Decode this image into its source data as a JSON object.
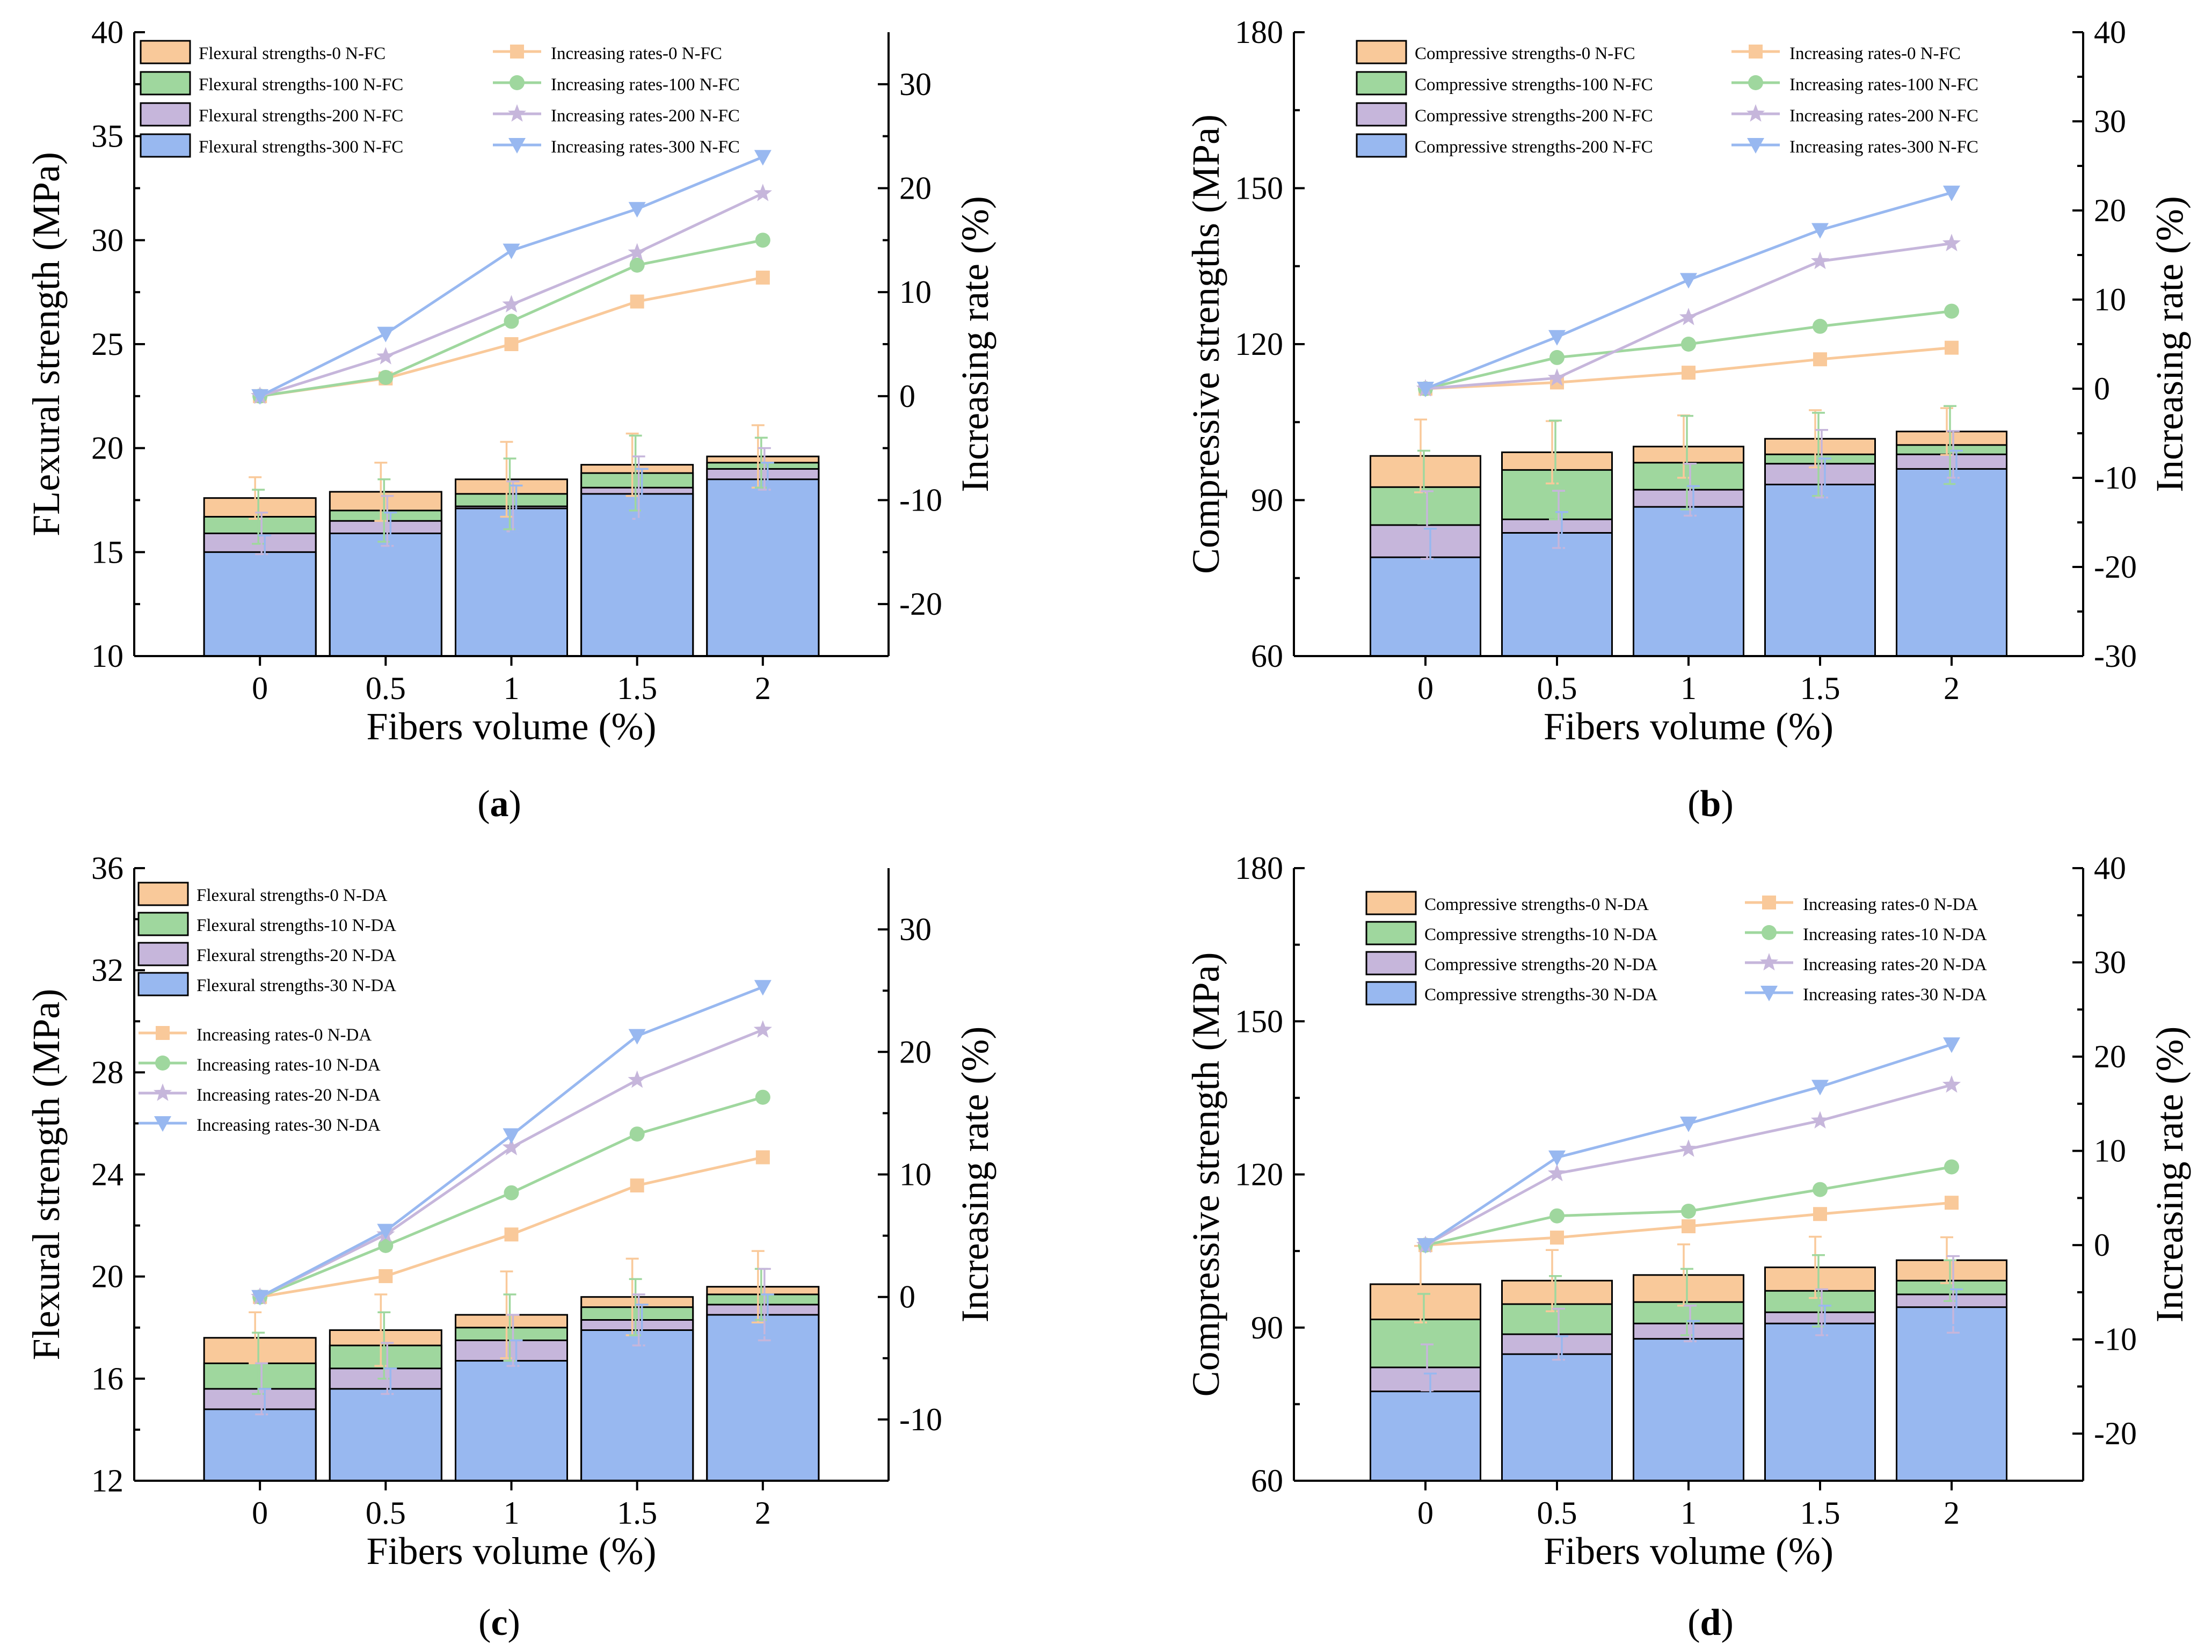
{
  "chart_data": [
    {
      "id": "a",
      "type": "bar",
      "stacked": true,
      "caption": "a",
      "categories": [
        "0",
        "0.5",
        "1",
        "1.5",
        "2"
      ],
      "xlabel": "Fibers volume (%)",
      "ylabel": "FLexural strength (MPa)",
      "ylabel2": "Increasing rate (%)",
      "ylim": [
        10,
        40
      ],
      "yticks": [
        10,
        15,
        20,
        25,
        30,
        35,
        40
      ],
      "ylim2": [
        -25,
        35
      ],
      "yticks2": [
        -20,
        -10,
        0,
        10,
        20,
        30
      ],
      "bar_series": [
        {
          "name": "Flexural strengths-0 N-FC",
          "color": "#F9C99A",
          "values": [
            17.6,
            17.9,
            18.5,
            19.2,
            19.6
          ],
          "errors": [
            1.0,
            1.4,
            1.8,
            1.5,
            1.5
          ]
        },
        {
          "name": "Flexural strengths-100 N-FC",
          "color": "#9FD79E",
          "values": [
            16.7,
            17.0,
            17.8,
            18.8,
            19.3
          ],
          "errors": [
            1.3,
            1.5,
            1.7,
            1.8,
            1.2
          ]
        },
        {
          "name": "Flexural strengths-200 N-FC",
          "color": "#C6B6DB",
          "values": [
            15.9,
            16.5,
            17.2,
            18.1,
            19.0
          ],
          "errors": [
            1.0,
            1.2,
            1.2,
            1.5,
            1.0
          ]
        },
        {
          "name": "Flexural strengths-300 N-FC",
          "color": "#98B8F0",
          "values": [
            15.0,
            15.9,
            17.1,
            17.8,
            18.5
          ],
          "errors": [
            0.8,
            1.0,
            1.1,
            1.2,
            0.8
          ]
        }
      ],
      "line_series": [
        {
          "name": "Increasing rates-0 N-FC",
          "color": "#F9C99A",
          "marker": "square",
          "values": [
            0,
            1.7,
            5.0,
            9.1,
            11.4
          ]
        },
        {
          "name": "Increasing rates-100 N-FC",
          "color": "#9FD79E",
          "marker": "circle",
          "values": [
            0,
            1.8,
            7.2,
            12.6,
            15.0
          ]
        },
        {
          "name": "Increasing rates-200 N-FC",
          "color": "#C6B6DB",
          "marker": "star",
          "values": [
            0,
            3.8,
            8.8,
            13.8,
            19.5
          ]
        },
        {
          "name": "Increasing rates-300 N-FC",
          "color": "#98B8F0",
          "marker": "tri",
          "values": [
            0,
            6.0,
            14.0,
            18.0,
            23.0
          ]
        }
      ]
    },
    {
      "id": "b",
      "type": "bar",
      "stacked": true,
      "caption": "b",
      "categories": [
        "0",
        "0.5",
        "1",
        "1.5",
        "2"
      ],
      "xlabel": "Fibers volume (%)",
      "ylabel": "Compressive strengths (MPa)",
      "ylabel2": "Increasing rate (%)",
      "ylim": [
        60,
        180
      ],
      "yticks": [
        60,
        90,
        120,
        150,
        180
      ],
      "ylim2": [
        -30,
        40
      ],
      "yticks2": [
        -30,
        -20,
        -10,
        0,
        10,
        20,
        30,
        40
      ],
      "bar_series": [
        {
          "name": "Compressive strengths-0 N-FC",
          "color": "#F9C99A",
          "values": [
            98.5,
            99.2,
            100.3,
            101.8,
            103.2
          ],
          "errors": [
            7.0,
            6.0,
            6.0,
            5.5,
            4.5
          ]
        },
        {
          "name": "Compressive strengths-100 N-FC",
          "color": "#9FD79E",
          "values": [
            92.5,
            95.8,
            97.2,
            98.8,
            100.6
          ],
          "errors": [
            7.0,
            9.5,
            9.0,
            8.0,
            7.5
          ]
        },
        {
          "name": "Compressive strengths-200 N-FC",
          "color": "#C6B6DB",
          "values": [
            85.2,
            86.3,
            92.0,
            97.0,
            98.8
          ],
          "errors": [
            6.5,
            5.5,
            5.0,
            6.5,
            4.5
          ]
        },
        {
          "name": "Compressive strengths-200 N-FC",
          "color": "#98B8F0",
          "values": [
            79.0,
            83.7,
            88.7,
            93.0,
            96.0
          ],
          "errors": [
            5.5,
            4.0,
            4.0,
            5.0,
            3.5
          ]
        }
      ],
      "line_series": [
        {
          "name": "Increasing rates-0 N-FC",
          "color": "#F9C99A",
          "marker": "square",
          "values": [
            0,
            0.7,
            1.8,
            3.3,
            4.6
          ]
        },
        {
          "name": "Increasing rates-100 N-FC",
          "color": "#9FD79E",
          "marker": "circle",
          "values": [
            0,
            3.5,
            5.0,
            7.0,
            8.7
          ]
        },
        {
          "name": "Increasing rates-200 N-FC",
          "color": "#C6B6DB",
          "marker": "star",
          "values": [
            0,
            1.2,
            8.0,
            14.3,
            16.3
          ]
        },
        {
          "name": "Increasing rates-300 N-FC",
          "color": "#98B8F0",
          "marker": "tri",
          "values": [
            0,
            5.8,
            12.2,
            17.8,
            22.0
          ]
        }
      ]
    },
    {
      "id": "c",
      "type": "bar",
      "stacked": true,
      "caption": "c",
      "categories": [
        "0",
        "0.5",
        "1",
        "1.5",
        "2"
      ],
      "xlabel": "Fibers volume (%)",
      "ylabel": "Flexural strength (MPa)",
      "ylabel2": "Increasing rate (%)",
      "ylim": [
        12,
        36
      ],
      "yticks": [
        12,
        16,
        20,
        24,
        28,
        32,
        36
      ],
      "ylim2": [
        -15,
        35
      ],
      "yticks2": [
        -10,
        0,
        10,
        20,
        30
      ],
      "bar_series": [
        {
          "name": "Flexural strengths-0 N-DA",
          "color": "#F9C99A",
          "values": [
            17.6,
            17.9,
            18.5,
            19.2,
            19.6
          ],
          "errors": [
            1.0,
            1.4,
            1.7,
            1.5,
            1.4
          ]
        },
        {
          "name": "Flexural strengths-10 N-DA",
          "color": "#9FD79E",
          "values": [
            16.6,
            17.3,
            18.0,
            18.8,
            19.3
          ],
          "errors": [
            1.2,
            1.3,
            1.3,
            1.1,
            1.0
          ]
        },
        {
          "name": "Flexural strengths-20 N-DA",
          "color": "#C6B6DB",
          "values": [
            15.6,
            16.4,
            17.5,
            18.3,
            18.9
          ],
          "errors": [
            1.0,
            1.0,
            1.0,
            1.0,
            1.4
          ]
        },
        {
          "name": "Flexural strengths-30 N-DA",
          "color": "#98B8F0",
          "values": [
            14.8,
            15.6,
            16.7,
            17.9,
            18.5
          ],
          "errors": [
            0.8,
            0.8,
            0.8,
            1.0,
            0.8
          ]
        }
      ],
      "line_series": [
        {
          "name": "Increasing rates-0 N-DA",
          "color": "#F9C99A",
          "marker": "square",
          "values": [
            0,
            1.7,
            5.1,
            9.1,
            11.4
          ]
        },
        {
          "name": "Increasing rates-10 N-DA",
          "color": "#9FD79E",
          "marker": "circle",
          "values": [
            0,
            4.2,
            8.5,
            13.3,
            16.3
          ]
        },
        {
          "name": "Increasing rates-20 N-DA",
          "color": "#C6B6DB",
          "marker": "star",
          "values": [
            0,
            5.1,
            12.2,
            17.7,
            21.8
          ]
        },
        {
          "name": "Increasing rates-30 N-DA",
          "color": "#98B8F0",
          "marker": "tri",
          "values": [
            0,
            5.4,
            13.2,
            21.3,
            25.3
          ]
        }
      ]
    },
    {
      "id": "d",
      "type": "bar",
      "stacked": true,
      "caption": "d",
      "categories": [
        "0",
        "0.5",
        "1",
        "1.5",
        "2"
      ],
      "xlabel": "Fibers volume (%)",
      "ylabel": "Compressive strength (MPa)",
      "ylabel2": "Increasing rate (%)",
      "ylim": [
        60,
        180
      ],
      "yticks": [
        60,
        90,
        120,
        150,
        180
      ],
      "ylim2": [
        -25,
        40
      ],
      "yticks2": [
        -20,
        -10,
        0,
        10,
        20,
        30,
        40
      ],
      "bar_series": [
        {
          "name": "Compressive strengths-0 N-DA",
          "color": "#F9C99A",
          "values": [
            98.5,
            99.2,
            100.3,
            101.8,
            103.2
          ],
          "errors": [
            7.5,
            6.0,
            6.0,
            6.0,
            4.5
          ]
        },
        {
          "name": "Compressive strengths-10 N-DA",
          "color": "#9FD79E",
          "values": [
            91.6,
            94.6,
            95.0,
            97.2,
            99.2
          ],
          "errors": [
            5.0,
            5.5,
            6.5,
            7.0,
            4.0
          ]
        },
        {
          "name": "Compressive strengths-20 N-DA",
          "color": "#C6B6DB",
          "values": [
            82.2,
            88.7,
            90.8,
            93.0,
            96.5
          ],
          "errors": [
            4.5,
            5.0,
            3.5,
            4.5,
            7.5
          ]
        },
        {
          "name": "Compressive strengths-30 N-DA",
          "color": "#98B8F0",
          "values": [
            77.5,
            84.8,
            87.8,
            90.8,
            94.0
          ],
          "errors": [
            3.5,
            3.5,
            3.5,
            3.5,
            3.5
          ]
        }
      ],
      "line_series": [
        {
          "name": "Increasing rates-0 N-DA",
          "color": "#F9C99A",
          "marker": "square",
          "values": [
            0,
            0.8,
            2.0,
            3.3,
            4.5
          ]
        },
        {
          "name": "Increasing rates-10 N-DA",
          "color": "#9FD79E",
          "marker": "circle",
          "values": [
            0,
            3.1,
            3.6,
            5.9,
            8.3
          ]
        },
        {
          "name": "Increasing rates-20 N-DA",
          "color": "#C6B6DB",
          "marker": "star",
          "values": [
            0,
            7.6,
            10.2,
            13.2,
            17.0
          ]
        },
        {
          "name": "Increasing rates-30 N-DA",
          "color": "#98B8F0",
          "marker": "tri",
          "values": [
            0,
            9.3,
            12.9,
            16.8,
            21.3
          ]
        }
      ]
    }
  ]
}
